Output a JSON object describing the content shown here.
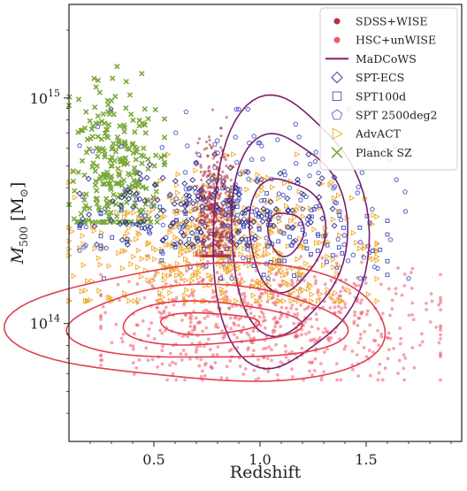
{
  "chart_data": {
    "type": "scatter",
    "title": "",
    "xlabel": "Redshift",
    "ylabel": "M500 [M⊙]",
    "xlim": [
      0.1,
      1.95
    ],
    "ylim": [
      30000000000000.0,
      2600000000000000.0
    ],
    "y_scale": "log",
    "grid": false,
    "legend_position": "top-right",
    "x_ticks": [
      {
        "value": 0.5,
        "label": "0.5"
      },
      {
        "value": 1.0,
        "label": "1.0"
      },
      {
        "value": 1.5,
        "label": "1.5"
      }
    ],
    "y_ticks": [
      {
        "value": 100000000000000.0,
        "base": "10",
        "exp": "14"
      },
      {
        "value": 1000000000000000.0,
        "base": "10",
        "exp": "15"
      }
    ],
    "y_label_parts": {
      "main": "M",
      "sub": "500",
      "rest": " [M",
      "sun_sub": "⊙",
      "close": "]"
    },
    "series": [
      {
        "name": "SDSS+WISE",
        "marker": "dot",
        "color": "#b5303b",
        "z_range": [
          0.7,
          0.88
        ],
        "logm_range": [
          14.3,
          15.0
        ],
        "logm_center": 14.47
      },
      {
        "name": "HSC+unWISE",
        "marker": "dot",
        "color": "#ee5a6a",
        "z_range": [
          0.25,
          1.85
        ],
        "logm_range": [
          13.75,
          14.3
        ],
        "logm_center": 14.0
      },
      {
        "name": "MaDCoWS",
        "marker": "contour",
        "color": "#7a1f6e"
      },
      {
        "name": "SPT-ECS",
        "marker": "diamond",
        "color": "#2a2a8c",
        "z_range": [
          0.15,
          1.35
        ],
        "logm_range": [
          14.35,
          14.75
        ],
        "logm_center": 14.52
      },
      {
        "name": "SPT100d",
        "marker": "square",
        "color": "#3a4fbf",
        "z_range": [
          0.25,
          1.6
        ],
        "logm_range": [
          14.2,
          14.6
        ],
        "logm_center": 14.4
      },
      {
        "name": "SPT 2500deg2",
        "marker": "pentagon",
        "color": "#5a63c9",
        "z_range": [
          0.15,
          1.7
        ],
        "logm_range": [
          14.2,
          14.95
        ],
        "logm_center": 14.55
      },
      {
        "name": "AdvACT",
        "marker": "triangle-right",
        "color": "#f0a828",
        "z_range": [
          0.1,
          1.55
        ],
        "logm_range": [
          14.1,
          14.75
        ],
        "logm_center": 14.35
      },
      {
        "name": "Planck SZ",
        "marker": "x",
        "color": "#7aa83a",
        "z_range": [
          0.1,
          0.55
        ],
        "logm_range": [
          14.45,
          15.2
        ],
        "logm_center": 14.7
      }
    ],
    "contours": [
      {
        "series": "MaDCoWS",
        "center_z": 1.12,
        "center_logm": 14.4,
        "levels": [
          [
            0.08,
            0.1
          ],
          [
            0.17,
            0.26
          ],
          [
            0.26,
            0.46
          ],
          [
            0.35,
            0.62
          ]
        ],
        "color": "#7a1f6e"
      },
      {
        "series": "HSC+unWISE",
        "center_z": 0.75,
        "center_logm": 14.0,
        "levels": [
          [
            0.22,
            0.05
          ],
          [
            0.4,
            0.1
          ],
          [
            0.62,
            0.17
          ],
          [
            0.85,
            0.27
          ]
        ],
        "color": "#e0404f"
      }
    ]
  }
}
